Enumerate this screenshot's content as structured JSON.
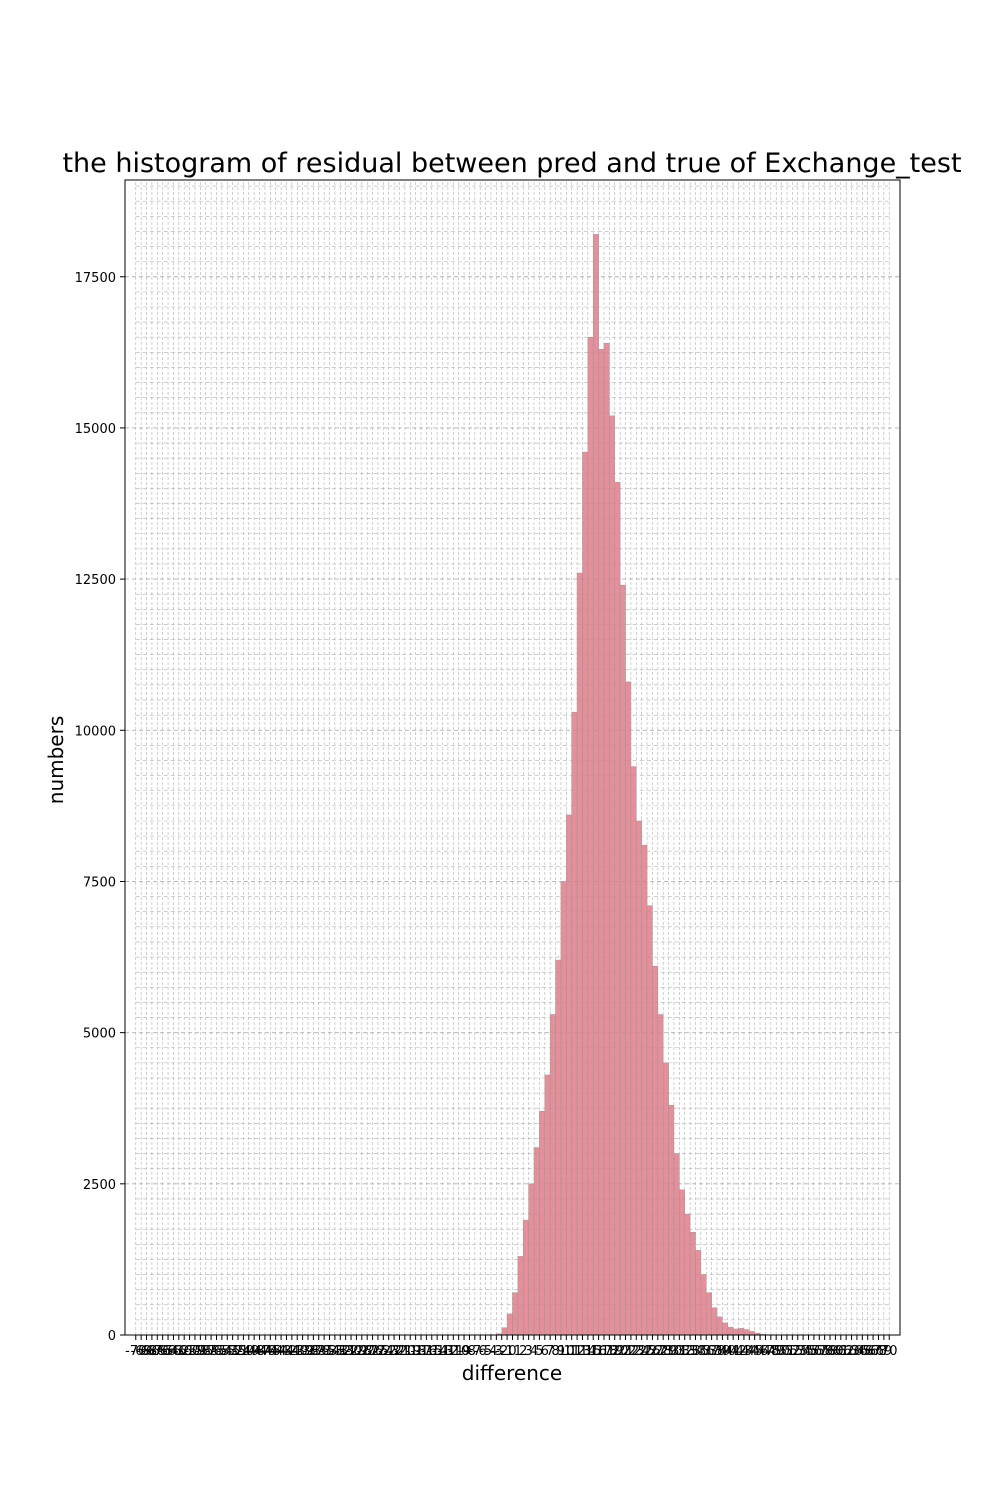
{
  "chart_data": {
    "type": "bar",
    "title": "the histogram of residual between pred and true of Exchange_test",
    "xlabel": "difference",
    "ylabel": "numbers",
    "ylim": [
      0,
      19100
    ],
    "yticks": [
      0,
      2500,
      5000,
      7500,
      10000,
      12500,
      15000,
      17500
    ],
    "ytick_labels": [
      "0",
      "2500",
      "5000",
      "7500",
      "10000",
      "12500",
      "15000",
      "17500"
    ],
    "xlim": [
      -72,
      72
    ],
    "x_range": [
      -70,
      70
    ],
    "bin_count": 140,
    "grid": true,
    "bar_color": "#e07b8a",
    "bar_edge_color": "#9a9a9a",
    "grid_color": "#b0b0b0",
    "bins": [
      {
        "x": -3,
        "count": 20
      },
      {
        "x": -2,
        "count": 120
      },
      {
        "x": -1,
        "count": 350
      },
      {
        "x": 0,
        "count": 700
      },
      {
        "x": 1,
        "count": 1300
      },
      {
        "x": 2,
        "count": 1900
      },
      {
        "x": 3,
        "count": 2500
      },
      {
        "x": 4,
        "count": 3100
      },
      {
        "x": 5,
        "count": 3700
      },
      {
        "x": 6,
        "count": 4300
      },
      {
        "x": 7,
        "count": 5300
      },
      {
        "x": 8,
        "count": 6200
      },
      {
        "x": 9,
        "count": 7500
      },
      {
        "x": 10,
        "count": 8600
      },
      {
        "x": 11,
        "count": 10300
      },
      {
        "x": 12,
        "count": 12600
      },
      {
        "x": 13,
        "count": 14600
      },
      {
        "x": 14,
        "count": 16500
      },
      {
        "x": 15,
        "count": 18200
      },
      {
        "x": 16,
        "count": 16300
      },
      {
        "x": 17,
        "count": 16400
      },
      {
        "x": 18,
        "count": 15200
      },
      {
        "x": 19,
        "count": 14100
      },
      {
        "x": 20,
        "count": 12400
      },
      {
        "x": 21,
        "count": 10800
      },
      {
        "x": 22,
        "count": 9400
      },
      {
        "x": 23,
        "count": 8500
      },
      {
        "x": 24,
        "count": 8100
      },
      {
        "x": 25,
        "count": 7100
      },
      {
        "x": 26,
        "count": 6100
      },
      {
        "x": 27,
        "count": 5300
      },
      {
        "x": 28,
        "count": 4500
      },
      {
        "x": 29,
        "count": 3800
      },
      {
        "x": 30,
        "count": 3000
      },
      {
        "x": 31,
        "count": 2400
      },
      {
        "x": 32,
        "count": 2000
      },
      {
        "x": 33,
        "count": 1700
      },
      {
        "x": 34,
        "count": 1400
      },
      {
        "x": 35,
        "count": 1000
      },
      {
        "x": 36,
        "count": 700
      },
      {
        "x": 37,
        "count": 450
      },
      {
        "x": 38,
        "count": 300
      },
      {
        "x": 39,
        "count": 200
      },
      {
        "x": 40,
        "count": 130
      },
      {
        "x": 41,
        "count": 100
      },
      {
        "x": 42,
        "count": 110
      },
      {
        "x": 43,
        "count": 90
      },
      {
        "x": 44,
        "count": 60
      },
      {
        "x": 45,
        "count": 30
      },
      {
        "x": 46,
        "count": 10
      }
    ]
  }
}
